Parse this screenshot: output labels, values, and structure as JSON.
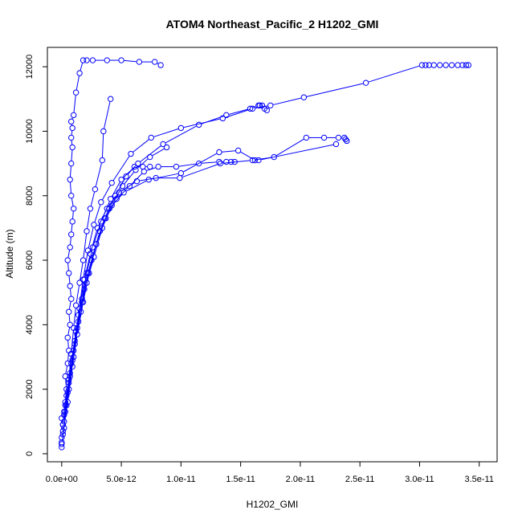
{
  "chart_data": {
    "type": "line",
    "title": "ATOM4 Northeast_Pacific_2 H1202_GMI",
    "xlabel": "H1202_GMI",
    "ylabel": "Altitude (m)",
    "xlim": [
      -1.2e-12,
      3.65e-11
    ],
    "ylim": [
      -250,
      12600
    ],
    "xticks": [
      0,
      5e-12,
      1e-11,
      1.5e-11,
      2e-11,
      2.5e-11,
      3e-11,
      3.5e-11
    ],
    "xtick_labels": [
      "0.0e+00",
      "5.0e-12",
      "1.0e-11",
      "1.5e-11",
      "2.0e-11",
      "2.5e-11",
      "3.0e-11",
      "3.5e-11"
    ],
    "yticks": [
      0,
      2000,
      4000,
      6000,
      8000,
      10000,
      12000
    ],
    "ytick_labels": [
      "0",
      "2000",
      "4000",
      "6000",
      "8000",
      "10000",
      "12000"
    ],
    "grid": false,
    "legend": "none",
    "color": "#0000ff",
    "marker": "open-circle",
    "series": [
      {
        "x": [
          0,
          0,
          0,
          1e-13,
          1e-13,
          0,
          2e-13,
          3e-13,
          4e-13,
          3e-13,
          5e-13,
          6e-13,
          5e-13,
          7e-13,
          6e-13,
          8e-13,
          7e-13,
          6e-13,
          5e-13,
          7e-13,
          8e-13,
          9e-13,
          1e-12,
          8e-13,
          7e-13,
          8e-13,
          9e-13,
          8e-13,
          9e-13,
          8e-13,
          1e-12,
          1.2e-12,
          1.5e-12,
          1.8e-12,
          2.1e-12,
          2.6e-12,
          3.8e-12,
          5e-12,
          6.5e-12,
          7.8e-12,
          8.3e-12
        ],
        "y": [
          200,
          350,
          500,
          700,
          900,
          1100,
          1300,
          1600,
          2000,
          2400,
          2800,
          3200,
          3600,
          4000,
          4400,
          4800,
          5200,
          5600,
          6000,
          6400,
          6800,
          7200,
          7600,
          8000,
          8500,
          9000,
          9500,
          9800,
          10100,
          10300,
          10500,
          11200,
          11800,
          12200,
          12200,
          12200,
          12200,
          12200,
          12150,
          12150,
          12050
        ]
      },
      {
        "x": [
          0,
          2e-13,
          4e-13,
          6e-13,
          8e-13,
          1e-12,
          1.2e-12,
          1.5e-12,
          1.8e-12,
          2.1e-12,
          2.4e-12,
          2.8e-12,
          3.4e-12,
          3.5e-12,
          4.1e-12
        ],
        "y": [
          300,
          800,
          1500,
          2300,
          3100,
          3900,
          4600,
          5300,
          6000,
          6900,
          7600,
          8200,
          9100,
          10000,
          11000
        ]
      },
      {
        "x": [
          2e-13,
          6e-13,
          1e-12,
          1.4e-12,
          1.8e-12,
          2.2e-12,
          2.7e-12,
          3.3e-12,
          4.2e-12,
          5.8e-12,
          7.5e-12,
          1e-11,
          1.35e-11,
          1.6e-11,
          1.75e-11,
          2.03e-11,
          2.55e-11,
          3.02e-11,
          3.05e-11,
          3.08e-11,
          3.12e-11,
          3.17e-11,
          3.22e-11,
          3.27e-11,
          3.32e-11,
          3.36e-11,
          3.39e-11,
          3.41e-11
        ],
        "y": [
          1200,
          2200,
          3200,
          4300,
          5400,
          6300,
          7100,
          7800,
          8400,
          9300,
          9800,
          10100,
          10400,
          10700,
          10800,
          11050,
          11500,
          12050,
          12050,
          12050,
          12050,
          12050,
          12050,
          12050,
          12050,
          12050,
          12050,
          12050
        ]
      },
      {
        "x": [
          1e-13,
          5e-13,
          9e-13,
          1.3e-12,
          1.7e-12,
          2.1e-12,
          2.6e-12,
          3.3e-12,
          4.1e-12,
          5e-12,
          6.4e-12,
          8.5e-12,
          1.15e-11,
          1.38e-11,
          1.58e-11,
          1.65e-11,
          1.66e-11,
          1.68e-11,
          1.7e-11,
          1.72e-11
        ],
        "y": [
          900,
          1900,
          2900,
          3900,
          4800,
          5600,
          6400,
          7200,
          7900,
          8500,
          9000,
          9600,
          10200,
          10500,
          10700,
          10800,
          10800,
          10800,
          10700,
          10650
        ]
      },
      {
        "x": [
          3e-13,
          7e-13,
          1.1e-12,
          1.5e-12,
          1.9e-12,
          2.4e-12,
          3e-12,
          3.8e-12,
          4.8e-12,
          6.3e-12,
          7.9e-12,
          9.9e-12,
          1.33e-11,
          1.6e-11,
          1.78e-11,
          2.05e-11,
          2.2e-11,
          2.32e-11,
          2.37e-11,
          2.38e-11,
          2.39e-11
        ],
        "y": [
          1500,
          2500,
          3500,
          4500,
          5400,
          6200,
          7000,
          7600,
          8100,
          8450,
          8550,
          8550,
          9000,
          9100,
          9200,
          9800,
          9800,
          9800,
          9800,
          9750,
          9700
        ]
      },
      {
        "x": [
          2e-13,
          6e-13,
          1e-12,
          1.4e-12,
          1.9e-12,
          2.5e-12,
          3.2e-12,
          4e-12,
          5.2e-12,
          7.3e-12,
          1e-11,
          1.32e-11,
          1.48e-11,
          1.62e-11,
          1.65e-11,
          2.3e-11
        ],
        "y": [
          1000,
          2000,
          3000,
          4100,
          5100,
          6000,
          6900,
          7600,
          8100,
          8500,
          8700,
          9350,
          9400,
          9100,
          9100,
          9600
        ]
      },
      {
        "x": [
          4e-13,
          8e-13,
          1.2e-12,
          1.7e-12,
          2.2e-12,
          2.9e-12,
          3.7e-12,
          4.6e-12,
          5.7e-12,
          6.9e-12,
          8.1e-12,
          9.6e-12,
          1.15e-11,
          1.32e-11,
          1.38e-11,
          1.42e-11,
          1.45e-11
        ],
        "y": [
          1800,
          2800,
          3800,
          4700,
          5600,
          6500,
          7300,
          7900,
          8300,
          8750,
          8900,
          8900,
          9000,
          9050,
          9050,
          9050,
          9050
        ]
      },
      {
        "x": [
          1e-13,
          5e-13,
          9e-13,
          1.3e-12,
          1.8e-12,
          2.3e-12,
          2.9e-12,
          3.6e-12,
          4.5e-12,
          5.4e-12,
          6.1e-12,
          6.8e-12,
          7.4e-12
        ],
        "y": [
          600,
          1600,
          2700,
          3700,
          4700,
          5600,
          6500,
          7300,
          8000,
          8600,
          8900,
          8900,
          8900
        ]
      },
      {
        "x": [
          3e-13,
          7e-13,
          1.1e-12,
          1.6e-12,
          2.1e-12,
          2.7e-12,
          3.4e-12,
          4.2e-12,
          5.1e-12,
          6.2e-12,
          7.4e-12,
          8.8e-12
        ],
        "y": [
          1300,
          2400,
          3400,
          4400,
          5300,
          6100,
          7000,
          7700,
          8300,
          8800,
          9200,
          9500
        ]
      }
    ]
  }
}
